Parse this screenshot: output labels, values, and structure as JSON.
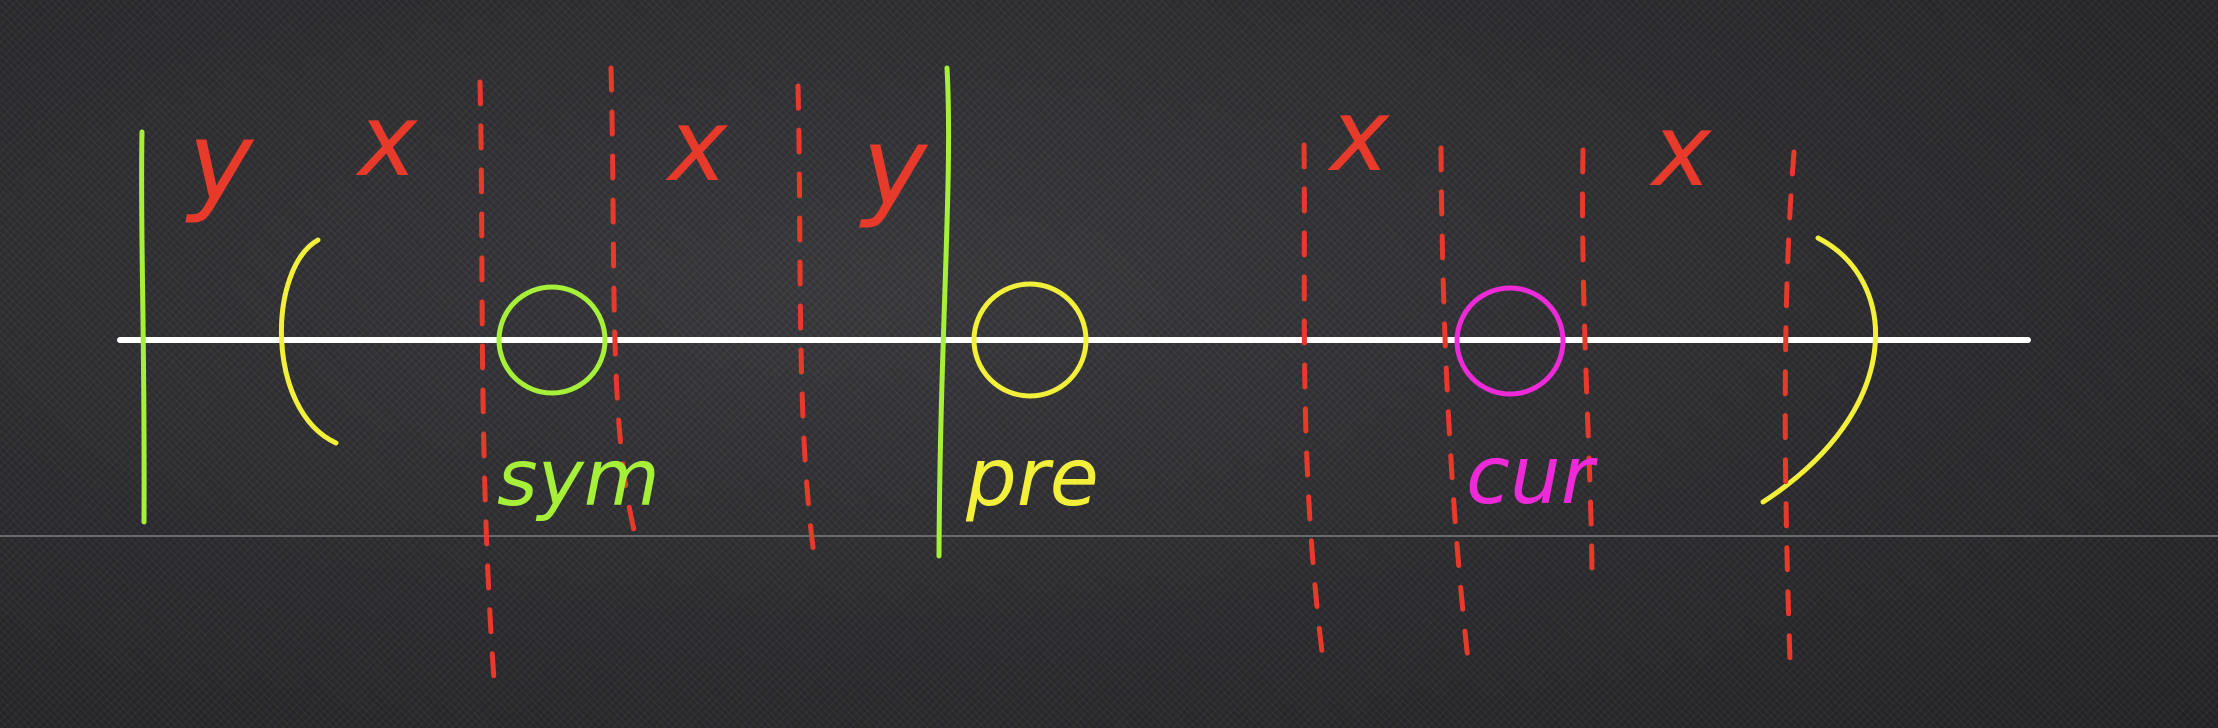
{
  "labels": {
    "y_left": "y",
    "x_1": "x",
    "x_2": "x",
    "y_right": "y",
    "x_3": "x",
    "x_4": "x",
    "sym": "sym",
    "pre": "pre",
    "cur": "cur"
  },
  "colors": {
    "background": "#2b2b2e",
    "line": "#ffffff",
    "green": "#a6f03a",
    "yellow": "#f2f03a",
    "red": "#e83a2a",
    "magenta": "#ee2ad8"
  }
}
